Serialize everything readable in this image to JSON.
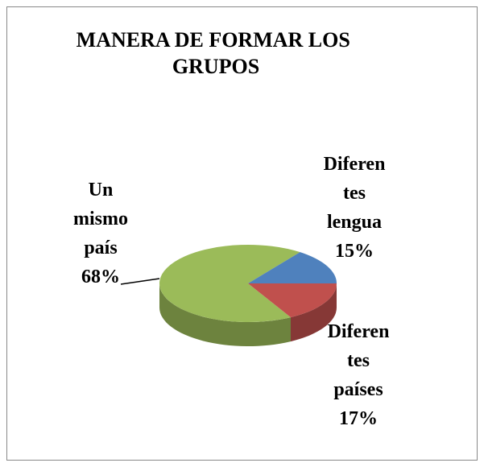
{
  "chart_data": {
    "type": "pie",
    "title": "MANERA DE FORMAR LOS GRUPOS",
    "categories": [
      "Un mismo país",
      "Diferentes lengua",
      "Diferentes países"
    ],
    "values": [
      68,
      15,
      17
    ],
    "value_labels": [
      "68%",
      "15%",
      "17%"
    ],
    "colors": [
      "#9bbb59",
      "#4f81bd",
      "#c0504d"
    ]
  }
}
